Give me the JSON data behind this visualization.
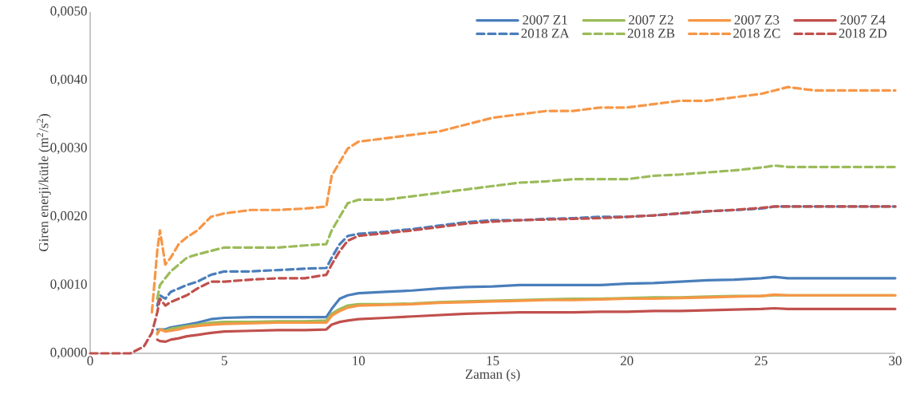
{
  "chart_data": {
    "type": "line",
    "xlabel": "Zaman (s)",
    "ylabel": "Giren enerji/kütle (m$^{2}$/s$^{2}$)",
    "x": [
      0,
      1,
      1.5,
      2,
      2.3,
      2.5,
      2.6,
      2.8,
      3,
      3.3,
      3.6,
      4,
      4.5,
      5,
      6,
      7,
      8,
      8.8,
      9,
      9.3,
      9.6,
      10,
      11,
      12,
      13,
      14,
      15,
      16,
      17,
      18,
      19,
      20,
      21,
      22,
      23,
      24,
      25,
      25.5,
      26,
      27,
      28,
      29,
      30
    ],
    "xlim": [
      0,
      30
    ],
    "xticks": [
      0,
      5,
      10,
      15,
      20,
      25,
      30
    ],
    "ylim": [
      0,
      0.005
    ],
    "yticks": [
      {
        "value": 0,
        "label": "0,0000"
      },
      {
        "value": 0.001,
        "label": "0,0010"
      },
      {
        "value": 0.002,
        "label": "0,0020"
      },
      {
        "value": 0.003,
        "label": "0,0030"
      },
      {
        "value": 0.004,
        "label": "0,0040"
      },
      {
        "value": 0.005,
        "label": "0,0050"
      }
    ],
    "legend": "top right",
    "series": [
      {
        "name": "2007 Z1",
        "color": "#4a7ebb",
        "line_style": "solid",
        "values": [
          null,
          null,
          null,
          null,
          null,
          0.00035,
          0.00035,
          0.00035,
          0.00038,
          0.0004,
          0.00042,
          0.00045,
          0.0005,
          0.00052,
          0.00053,
          0.00053,
          0.00053,
          0.00053,
          0.00065,
          0.0008,
          0.00085,
          0.00088,
          0.0009,
          0.00092,
          0.00095,
          0.00097,
          0.00098,
          0.001,
          0.001,
          0.001,
          0.001,
          0.00102,
          0.00103,
          0.00105,
          0.00107,
          0.00108,
          0.0011,
          0.00112,
          0.0011,
          0.0011,
          0.0011,
          0.0011,
          0.0011
        ]
      },
      {
        "name": "2007 Z2",
        "color": "#9bbb59",
        "line_style": "solid",
        "values": [
          null,
          null,
          null,
          null,
          null,
          0.0003,
          0.00035,
          0.00033,
          0.00036,
          0.00038,
          0.0004,
          0.00042,
          0.00045,
          0.00046,
          0.00046,
          0.00047,
          0.00047,
          0.00048,
          0.00058,
          0.00065,
          0.0007,
          0.00072,
          0.00072,
          0.00073,
          0.00075,
          0.00076,
          0.00077,
          0.00078,
          0.00079,
          0.0008,
          0.0008,
          0.00081,
          0.00082,
          0.00082,
          0.00083,
          0.00084,
          0.00084,
          0.00085,
          0.00085,
          0.00085,
          0.00085,
          0.00085,
          0.00085
        ]
      },
      {
        "name": "2007 Z3",
        "color": "#f79646",
        "line_style": "solid",
        "values": [
          null,
          null,
          null,
          null,
          null,
          0.00028,
          0.00035,
          0.00032,
          0.00033,
          0.00035,
          0.00038,
          0.0004,
          0.00042,
          0.00043,
          0.00044,
          0.00045,
          0.00045,
          0.00045,
          0.00055,
          0.00062,
          0.00067,
          0.0007,
          0.00071,
          0.00072,
          0.00074,
          0.00075,
          0.00076,
          0.00077,
          0.00078,
          0.00078,
          0.00079,
          0.0008,
          0.0008,
          0.00081,
          0.00082,
          0.00083,
          0.00084,
          0.00086,
          0.00085,
          0.00085,
          0.00085,
          0.00085,
          0.00085
        ]
      },
      {
        "name": "2007 Z4",
        "color": "#c0504d",
        "line_style": "solid",
        "values": [
          null,
          null,
          null,
          null,
          null,
          0.0002,
          0.00018,
          0.00017,
          0.0002,
          0.00022,
          0.00025,
          0.00027,
          0.0003,
          0.00032,
          0.00033,
          0.00034,
          0.00034,
          0.00035,
          0.00042,
          0.00046,
          0.00048,
          0.0005,
          0.00052,
          0.00054,
          0.00056,
          0.00058,
          0.00059,
          0.0006,
          0.0006,
          0.0006,
          0.00061,
          0.00061,
          0.00062,
          0.00062,
          0.00063,
          0.00064,
          0.00065,
          0.00066,
          0.00065,
          0.00065,
          0.00065,
          0.00065,
          0.00065
        ]
      },
      {
        "name": "2018 ZA",
        "color": "#4a7ebb",
        "line_style": "dashed",
        "values": [
          null,
          null,
          null,
          null,
          null,
          0.0007,
          0.00085,
          0.0008,
          0.0009,
          0.00095,
          0.001,
          0.00105,
          0.00115,
          0.0012,
          0.0012,
          0.00122,
          0.00124,
          0.00125,
          0.0014,
          0.0016,
          0.00172,
          0.00175,
          0.00178,
          0.00182,
          0.00187,
          0.00192,
          0.00195,
          0.00195,
          0.00197,
          0.00198,
          0.002,
          0.002,
          0.00202,
          0.00205,
          0.00208,
          0.0021,
          0.00212,
          0.00215,
          0.00215,
          0.00215,
          0.00215,
          0.00215,
          0.00215
        ]
      },
      {
        "name": "2018 ZB",
        "color": "#9bbb59",
        "line_style": "dashed",
        "values": [
          null,
          null,
          null,
          null,
          null,
          0.0008,
          0.001,
          0.0011,
          0.0012,
          0.0013,
          0.0014,
          0.00145,
          0.0015,
          0.00155,
          0.00155,
          0.00155,
          0.00158,
          0.0016,
          0.0018,
          0.002,
          0.0022,
          0.00225,
          0.00225,
          0.0023,
          0.00235,
          0.0024,
          0.00245,
          0.0025,
          0.00252,
          0.00255,
          0.00255,
          0.00255,
          0.0026,
          0.00262,
          0.00265,
          0.00268,
          0.00272,
          0.00275,
          0.00273,
          0.00273,
          0.00273,
          0.00273,
          0.00273
        ]
      },
      {
        "name": "2018 ZC",
        "color": "#f79646",
        "line_style": "dashed",
        "values": [
          null,
          null,
          null,
          null,
          0.0006,
          0.0015,
          0.0018,
          0.0013,
          0.0014,
          0.0016,
          0.0017,
          0.0018,
          0.002,
          0.00205,
          0.0021,
          0.0021,
          0.00212,
          0.00215,
          0.0026,
          0.0028,
          0.003,
          0.0031,
          0.00315,
          0.0032,
          0.00325,
          0.00335,
          0.00345,
          0.0035,
          0.00355,
          0.00355,
          0.0036,
          0.0036,
          0.00365,
          0.0037,
          0.0037,
          0.00375,
          0.0038,
          0.00385,
          0.0039,
          0.00385,
          0.00385,
          0.00385,
          0.00385
        ]
      },
      {
        "name": "2018 ZD",
        "color": "#c0504d",
        "line_style": "dashed",
        "values": [
          0,
          0,
          0,
          0.0001,
          0.0003,
          0.0006,
          0.0008,
          0.0007,
          0.00075,
          0.0008,
          0.00085,
          0.00095,
          0.00105,
          0.00105,
          0.00108,
          0.0011,
          0.0011,
          0.00115,
          0.0013,
          0.0015,
          0.00165,
          0.00172,
          0.00176,
          0.0018,
          0.00185,
          0.0019,
          0.00193,
          0.00195,
          0.00196,
          0.00197,
          0.00198,
          0.002,
          0.00202,
          0.00205,
          0.00208,
          0.0021,
          0.00213,
          0.00215,
          0.00215,
          0.00215,
          0.00215,
          0.00215,
          0.00215
        ]
      }
    ]
  }
}
